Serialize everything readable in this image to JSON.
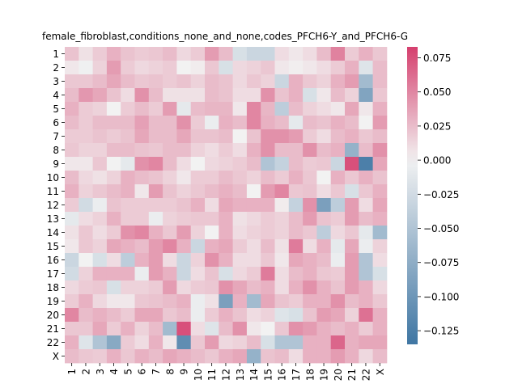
{
  "chart_data": {
    "type": "heatmap",
    "title": "female_fibroblast,conditions_none_and_none,codes_PFCH6-Y_and_PFCH6-G",
    "x_categories": [
      "1",
      "2",
      "3",
      "4",
      "5",
      "6",
      "7",
      "8",
      "9",
      "10",
      "11",
      "12",
      "13",
      "14",
      "15",
      "16",
      "17",
      "18",
      "19",
      "20",
      "21",
      "22",
      "X"
    ],
    "y_categories": [
      "1",
      "2",
      "3",
      "4",
      "5",
      "6",
      "7",
      "8",
      "9",
      "10",
      "11",
      "12",
      "13",
      "14",
      "15",
      "16",
      "17",
      "18",
      "19",
      "20",
      "21",
      "22",
      "X"
    ],
    "colorbar": {
      "vmin": -0.135,
      "vmax": 0.083,
      "ticks": [
        0.075,
        0.05,
        0.025,
        0.0,
        -0.025,
        -0.05,
        -0.075,
        -0.1,
        -0.125
      ],
      "tick_labels": [
        "0.075",
        "0.050",
        "0.025",
        "0.000",
        "−0.025",
        "−0.050",
        "−0.075",
        "−0.100",
        "−0.125"
      ],
      "colormap": "diverging blue-white-pink",
      "low_color": "#3f76a3",
      "mid_color": "#f2f2f2",
      "high_color": "#d53f6e"
    },
    "values": [
      [
        0.022,
        0.008,
        0.018,
        0.03,
        0.022,
        0.018,
        0.02,
        0.025,
        0.012,
        0.018,
        0.04,
        0.025,
        -0.02,
        -0.03,
        -0.03,
        0.01,
        0.005,
        0.01,
        0.025,
        0.052,
        0.018,
        0.03,
        0.02
      ],
      [
        0.005,
        -0.002,
        0.015,
        0.04,
        0.018,
        0.012,
        0.015,
        0.018,
        0.0,
        0.003,
        0.02,
        -0.02,
        0.012,
        0.015,
        0.02,
        0.005,
        0.002,
        0.005,
        0.01,
        0.018,
        0.03,
        -0.015,
        0.025
      ],
      [
        0.02,
        0.02,
        0.025,
        0.035,
        0.025,
        0.02,
        0.022,
        0.018,
        0.022,
        0.015,
        0.025,
        0.022,
        0.012,
        0.02,
        0.015,
        -0.03,
        0.03,
        0.02,
        0.015,
        0.03,
        0.04,
        -0.06,
        0.025
      ],
      [
        0.025,
        0.042,
        0.035,
        0.022,
        0.01,
        0.045,
        0.025,
        0.008,
        0.008,
        0.008,
        0.025,
        0.022,
        0.01,
        0.01,
        0.045,
        0.022,
        0.03,
        -0.02,
        0.005,
        0.025,
        0.015,
        -0.085,
        0.02
      ],
      [
        0.03,
        0.018,
        0.015,
        0.0,
        0.018,
        0.025,
        0.018,
        0.04,
        -0.01,
        0.025,
        0.028,
        0.028,
        0.005,
        0.05,
        0.028,
        -0.04,
        0.025,
        0.015,
        0.01,
        0.005,
        0.035,
        0.005,
        0.03
      ],
      [
        0.025,
        0.018,
        0.025,
        0.025,
        0.025,
        0.038,
        0.025,
        0.025,
        0.045,
        0.018,
        -0.005,
        0.03,
        0.025,
        0.05,
        0.03,
        0.025,
        -0.01,
        0.025,
        0.022,
        0.03,
        0.025,
        0.0,
        0.04
      ],
      [
        0.018,
        0.018,
        0.022,
        0.018,
        0.022,
        0.035,
        0.025,
        0.025,
        0.035,
        0.022,
        0.022,
        0.025,
        0.0,
        0.022,
        0.045,
        0.045,
        0.04,
        0.018,
        0.01,
        0.025,
        0.03,
        0.02,
        0.025
      ],
      [
        0.02,
        0.015,
        0.015,
        0.025,
        0.025,
        0.022,
        0.02,
        0.025,
        0.025,
        0.015,
        0.01,
        0.018,
        0.01,
        0.03,
        0.045,
        0.025,
        0.025,
        0.045,
        0.025,
        0.03,
        -0.07,
        0.025,
        0.045
      ],
      [
        0.005,
        0.005,
        0.02,
        0.0,
        -0.01,
        0.045,
        0.05,
        0.025,
        0.01,
        0.0,
        0.012,
        0.015,
        0.018,
        0.025,
        -0.05,
        -0.035,
        0.025,
        0.018,
        0.02,
        -0.03,
        0.075,
        -0.125,
        0.035
      ],
      [
        0.025,
        0.012,
        0.008,
        0.015,
        0.03,
        0.025,
        0.022,
        0.015,
        0.005,
        0.018,
        0.018,
        0.025,
        0.02,
        0.015,
        0.025,
        0.018,
        0.03,
        0.02,
        0.0,
        0.03,
        0.02,
        0.03,
        0.022
      ],
      [
        0.03,
        0.015,
        0.02,
        0.025,
        0.03,
        0.005,
        0.04,
        0.022,
        0.015,
        0.02,
        0.025,
        0.03,
        0.025,
        0.0,
        0.04,
        0.05,
        0.02,
        0.022,
        0.01,
        0.02,
        -0.02,
        0.02,
        0.03
      ],
      [
        0.018,
        -0.025,
        -0.005,
        0.022,
        0.018,
        0.018,
        0.018,
        0.018,
        0.022,
        0.03,
        0.01,
        0.035,
        0.03,
        0.03,
        0.03,
        0.003,
        -0.035,
        0.045,
        -0.09,
        -0.04,
        0.04,
        0.01,
        0.035
      ],
      [
        -0.01,
        0.01,
        0.015,
        0.03,
        0.018,
        0.018,
        -0.005,
        0.015,
        0.018,
        0.02,
        0.02,
        0.03,
        0.008,
        0.012,
        0.018,
        0.015,
        0.025,
        0.04,
        0.022,
        0.018,
        0.04,
        0.025,
        0.03
      ],
      [
        0.008,
        0.02,
        0.01,
        0.018,
        0.045,
        0.05,
        0.03,
        0.02,
        0.04,
        0.015,
        0.0,
        0.03,
        0.01,
        0.015,
        0.018,
        0.015,
        0.025,
        0.02,
        -0.04,
        0.012,
        0.02,
        -0.01,
        -0.06
      ],
      [
        0.005,
        0.02,
        0.015,
        0.035,
        0.03,
        0.025,
        0.04,
        0.05,
        0.03,
        -0.03,
        0.03,
        0.035,
        0.018,
        0.01,
        0.025,
        0.008,
        0.055,
        0.01,
        0.03,
        -0.01,
        0.035,
        -0.005,
        0.015
      ],
      [
        -0.03,
        0.0,
        -0.02,
        0.01,
        -0.04,
        0.03,
        0.04,
        0.01,
        -0.03,
        0.015,
        0.045,
        0.03,
        0.01,
        0.01,
        0.02,
        0.005,
        0.035,
        0.03,
        0.025,
        -0.005,
        0.04,
        -0.05,
        0.01
      ],
      [
        -0.025,
        0.015,
        0.03,
        0.03,
        0.03,
        -0.005,
        0.04,
        0.03,
        -0.03,
        0.01,
        0.022,
        -0.02,
        0.012,
        0.018,
        0.055,
        0.01,
        0.025,
        0.03,
        0.02,
        0.018,
        0.04,
        -0.05,
        -0.02
      ],
      [
        0.012,
        0.018,
        0.02,
        -0.02,
        0.015,
        0.015,
        0.018,
        0.04,
        0.012,
        0.018,
        0.02,
        0.045,
        0.035,
        0.025,
        0.03,
        0.01,
        0.03,
        0.045,
        0.03,
        0.022,
        0.04,
        0.03,
        0.012
      ],
      [
        0.018,
        0.03,
        0.012,
        0.005,
        0.005,
        0.02,
        0.022,
        0.025,
        0.03,
        -0.005,
        0.008,
        -0.09,
        0.03,
        -0.06,
        0.035,
        0.022,
        0.018,
        0.03,
        0.03,
        0.045,
        0.025,
        0.03,
        0.02
      ],
      [
        0.05,
        0.025,
        0.03,
        0.025,
        0.018,
        0.035,
        0.035,
        0.02,
        0.025,
        -0.005,
        0.018,
        0.03,
        0.022,
        0.01,
        0.015,
        -0.015,
        -0.02,
        0.022,
        0.04,
        0.035,
        0.015,
        0.06,
        0.03
      ],
      [
        0.02,
        0.02,
        0.035,
        0.018,
        0.03,
        0.015,
        0.025,
        -0.06,
        0.075,
        0.01,
        -0.015,
        0.025,
        0.045,
        0.005,
        0.0,
        0.02,
        0.045,
        0.04,
        0.03,
        0.025,
        0.03,
        0.018,
        0.03
      ],
      [
        0.03,
        -0.015,
        -0.05,
        -0.08,
        0.018,
        0.01,
        0.03,
        0.005,
        -0.11,
        0.02,
        0.04,
        0.012,
        0.015,
        0.025,
        -0.02,
        -0.05,
        -0.05,
        0.03,
        0.03,
        0.065,
        0.03,
        0.035,
        0.035
      ],
      [
        0.025,
        0.02,
        0.018,
        0.03,
        0.02,
        0.03,
        0.025,
        0.035,
        0.03,
        0.025,
        0.02,
        0.03,
        0.035,
        -0.07,
        0.022,
        0.025,
        0.01,
        0.03,
        0.03,
        0.04,
        0.03,
        0.012,
        0.025
      ]
    ]
  }
}
